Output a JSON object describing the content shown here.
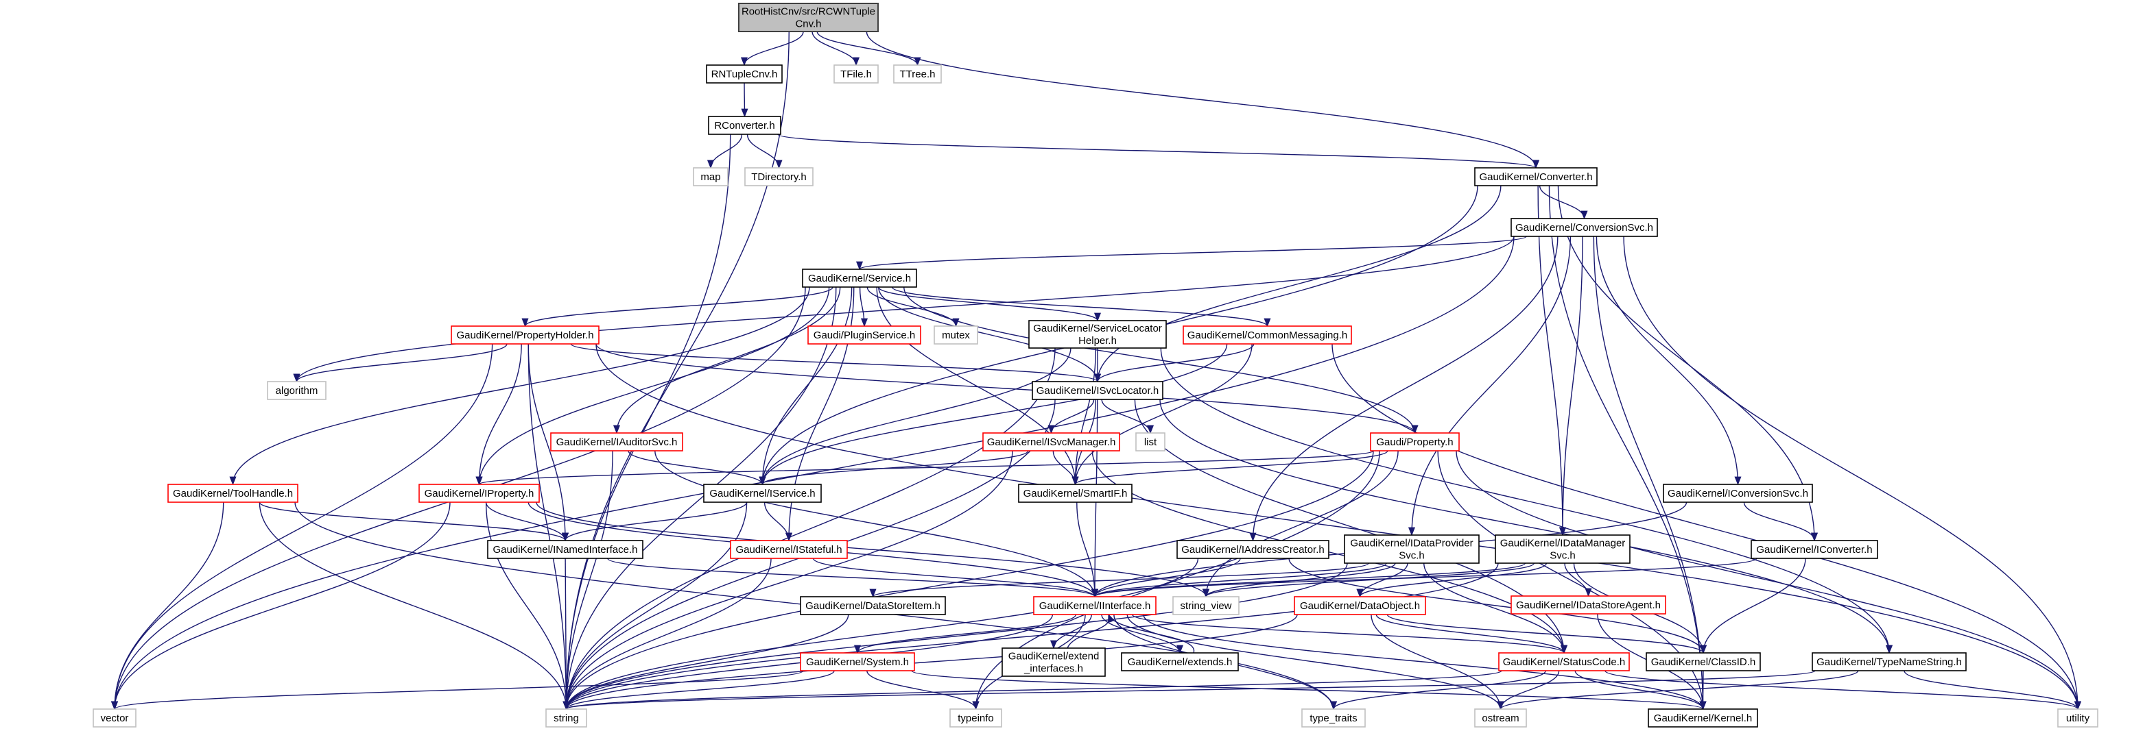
{
  "colors": {
    "edge": "#191970",
    "main_fill": "#bfbfbf",
    "main_border": "#404040",
    "normal_border": "#000000",
    "truncated_border": "#ff0000",
    "external_border": "#bfbfbf"
  },
  "nodes": [
    {
      "id": "rcwn",
      "lines": [
        "RootHistCnv/src/RCWNTuple",
        "Cnv.h"
      ],
      "kind": "main"
    },
    {
      "id": "rntuple",
      "lines": [
        "RNTupleCnv.h"
      ],
      "kind": "normal"
    },
    {
      "id": "tfile",
      "lines": [
        "TFile.h"
      ],
      "kind": "external"
    },
    {
      "id": "ttree",
      "lines": [
        "TTree.h"
      ],
      "kind": "external"
    },
    {
      "id": "rconv",
      "lines": [
        "RConverter.h"
      ],
      "kind": "normal"
    },
    {
      "id": "map",
      "lines": [
        "map"
      ],
      "kind": "external"
    },
    {
      "id": "tdir",
      "lines": [
        "TDirectory.h"
      ],
      "kind": "external"
    },
    {
      "id": "converter",
      "lines": [
        "GaudiKernel/Converter.h"
      ],
      "kind": "normal"
    },
    {
      "id": "convsvc",
      "lines": [
        "GaudiKernel/ConversionSvc.h"
      ],
      "kind": "normal"
    },
    {
      "id": "service",
      "lines": [
        "GaudiKernel/Service.h"
      ],
      "kind": "normal"
    },
    {
      "id": "propholder",
      "lines": [
        "GaudiKernel/PropertyHolder.h"
      ],
      "kind": "truncated"
    },
    {
      "id": "plugin",
      "lines": [
        "Gaudi/PluginService.h"
      ],
      "kind": "truncated"
    },
    {
      "id": "mutex",
      "lines": [
        "mutex"
      ],
      "kind": "external"
    },
    {
      "id": "slhelper",
      "lines": [
        "GaudiKernel/ServiceLocator",
        "Helper.h"
      ],
      "kind": "normal"
    },
    {
      "id": "commsg",
      "lines": [
        "GaudiKernel/CommonMessaging.h"
      ],
      "kind": "truncated"
    },
    {
      "id": "algorithm",
      "lines": [
        "algorithm"
      ],
      "kind": "external"
    },
    {
      "id": "isvcloc",
      "lines": [
        "GaudiKernel/ISvcLocator.h"
      ],
      "kind": "normal"
    },
    {
      "id": "iauditor",
      "lines": [
        "GaudiKernel/IAuditorSvc.h"
      ],
      "kind": "truncated"
    },
    {
      "id": "isvcmgr",
      "lines": [
        "GaudiKernel/ISvcManager.h"
      ],
      "kind": "truncated"
    },
    {
      "id": "list",
      "lines": [
        "list"
      ],
      "kind": "external"
    },
    {
      "id": "property",
      "lines": [
        "Gaudi/Property.h"
      ],
      "kind": "truncated"
    },
    {
      "id": "toolhandle",
      "lines": [
        "GaudiKernel/ToolHandle.h"
      ],
      "kind": "truncated"
    },
    {
      "id": "iproperty",
      "lines": [
        "GaudiKernel/IProperty.h"
      ],
      "kind": "truncated"
    },
    {
      "id": "iservice",
      "lines": [
        "GaudiKernel/IService.h"
      ],
      "kind": "normal"
    },
    {
      "id": "smartif",
      "lines": [
        "GaudiKernel/SmartIF.h"
      ],
      "kind": "normal"
    },
    {
      "id": "iconvsvc",
      "lines": [
        "GaudiKernel/IConversionSvc.h"
      ],
      "kind": "normal"
    },
    {
      "id": "inamed",
      "lines": [
        "GaudiKernel/INamedInterface.h"
      ],
      "kind": "normal"
    },
    {
      "id": "istateful",
      "lines": [
        "GaudiKernel/IStateful.h"
      ],
      "kind": "truncated"
    },
    {
      "id": "iaddr",
      "lines": [
        "GaudiKernel/IAddressCreator.h"
      ],
      "kind": "normal"
    },
    {
      "id": "idataprov",
      "lines": [
        "GaudiKernel/IDataProvider",
        "Svc.h"
      ],
      "kind": "normal"
    },
    {
      "id": "idatamgr",
      "lines": [
        "GaudiKernel/IDataManager",
        "Svc.h"
      ],
      "kind": "normal"
    },
    {
      "id": "iconverter",
      "lines": [
        "GaudiKernel/IConverter.h"
      ],
      "kind": "normal"
    },
    {
      "id": "dsitem",
      "lines": [
        "GaudiKernel/DataStoreItem.h"
      ],
      "kind": "normal"
    },
    {
      "id": "iinterface",
      "lines": [
        "GaudiKernel/IInterface.h"
      ],
      "kind": "truncated"
    },
    {
      "id": "string_view",
      "lines": [
        "string_view"
      ],
      "kind": "external"
    },
    {
      "id": "dataobject",
      "lines": [
        "GaudiKernel/DataObject.h"
      ],
      "kind": "truncated"
    },
    {
      "id": "idsagent",
      "lines": [
        "GaudiKernel/IDataStoreAgent.h"
      ],
      "kind": "truncated"
    },
    {
      "id": "extif",
      "lines": [
        "GaudiKernel/extend",
        "_interfaces.h"
      ],
      "kind": "normal"
    },
    {
      "id": "extends",
      "lines": [
        "GaudiKernel/extends.h"
      ],
      "kind": "normal"
    },
    {
      "id": "system",
      "lines": [
        "GaudiKernel/System.h"
      ],
      "kind": "truncated"
    },
    {
      "id": "statuscode",
      "lines": [
        "GaudiKernel/StatusCode.h"
      ],
      "kind": "truncated"
    },
    {
      "id": "classid",
      "lines": [
        "GaudiKernel/ClassID.h"
      ],
      "kind": "normal"
    },
    {
      "id": "typename",
      "lines": [
        "GaudiKernel/TypeNameString.h"
      ],
      "kind": "normal"
    },
    {
      "id": "vector",
      "lines": [
        "vector"
      ],
      "kind": "external"
    },
    {
      "id": "string",
      "lines": [
        "string"
      ],
      "kind": "external"
    },
    {
      "id": "typeinfo",
      "lines": [
        "typeinfo"
      ],
      "kind": "external"
    },
    {
      "id": "type_traits",
      "lines": [
        "type_traits"
      ],
      "kind": "external"
    },
    {
      "id": "ostream",
      "lines": [
        "ostream"
      ],
      "kind": "external"
    },
    {
      "id": "kernel",
      "lines": [
        "GaudiKernel/Kernel.h"
      ],
      "kind": "normal"
    },
    {
      "id": "utility",
      "lines": [
        "utility"
      ],
      "kind": "external"
    }
  ],
  "edges": [
    [
      "rcwn",
      "rntuple"
    ],
    [
      "rcwn",
      "tfile"
    ],
    [
      "rcwn",
      "ttree"
    ],
    [
      "rcwn",
      "converter"
    ],
    [
      "rcwn",
      "string"
    ],
    [
      "rntuple",
      "rconv"
    ],
    [
      "rconv",
      "map"
    ],
    [
      "rconv",
      "tdir"
    ],
    [
      "rconv",
      "converter"
    ],
    [
      "rconv",
      "string"
    ],
    [
      "converter",
      "convsvc"
    ],
    [
      "converter",
      "iservice"
    ],
    [
      "converter",
      "isvcloc"
    ],
    [
      "converter",
      "iconverter"
    ],
    [
      "converter",
      "idatamgr"
    ],
    [
      "converter",
      "kernel"
    ],
    [
      "convsvc",
      "service"
    ],
    [
      "convsvc",
      "iconvsvc"
    ],
    [
      "convsvc",
      "idataprov"
    ],
    [
      "convsvc",
      "idatamgr"
    ],
    [
      "convsvc",
      "iaddr"
    ],
    [
      "convsvc",
      "vector"
    ],
    [
      "convsvc",
      "kernel"
    ],
    [
      "convsvc",
      "utility"
    ],
    [
      "convsvc",
      "algorithm"
    ],
    [
      "service",
      "propholder"
    ],
    [
      "service",
      "plugin"
    ],
    [
      "service",
      "mutex"
    ],
    [
      "service",
      "slhelper"
    ],
    [
      "service",
      "commsg"
    ],
    [
      "service",
      "isvcloc"
    ],
    [
      "service",
      "property"
    ],
    [
      "service",
      "iproperty"
    ],
    [
      "service",
      "iservice"
    ],
    [
      "service",
      "iauditor"
    ],
    [
      "service",
      "istateful"
    ],
    [
      "service",
      "smartif"
    ],
    [
      "service",
      "toolhandle"
    ],
    [
      "service",
      "string"
    ],
    [
      "service",
      "vector"
    ],
    [
      "propholder",
      "algorithm"
    ],
    [
      "propholder",
      "iproperty"
    ],
    [
      "propholder",
      "inamed"
    ],
    [
      "propholder",
      "isvcloc"
    ],
    [
      "propholder",
      "property"
    ],
    [
      "propholder",
      "vector"
    ],
    [
      "propholder",
      "string"
    ],
    [
      "propholder",
      "utility"
    ],
    [
      "slhelper",
      "isvcloc"
    ],
    [
      "slhelper",
      "smartif"
    ],
    [
      "slhelper",
      "iservice"
    ],
    [
      "slhelper",
      "string"
    ],
    [
      "slhelper",
      "typename"
    ],
    [
      "commsg",
      "isvcloc"
    ],
    [
      "commsg",
      "smartif"
    ],
    [
      "commsg",
      "iservice"
    ],
    [
      "commsg",
      "utility"
    ],
    [
      "isvcloc",
      "isvcmgr"
    ],
    [
      "isvcloc",
      "list"
    ],
    [
      "isvcloc",
      "smartif"
    ],
    [
      "isvcloc",
      "iinterface"
    ],
    [
      "isvcloc",
      "string"
    ],
    [
      "isvcloc",
      "statuscode"
    ],
    [
      "isvcloc",
      "typename"
    ],
    [
      "iauditor",
      "iservice"
    ],
    [
      "iauditor",
      "iinterface"
    ],
    [
      "iauditor",
      "string"
    ],
    [
      "isvcmgr",
      "iservice"
    ],
    [
      "isvcmgr",
      "smartif"
    ],
    [
      "isvcmgr",
      "string"
    ],
    [
      "isvcmgr",
      "statuscode"
    ],
    [
      "property",
      "iproperty"
    ],
    [
      "property",
      "smartif"
    ],
    [
      "property",
      "string"
    ],
    [
      "property",
      "string_view"
    ],
    [
      "property",
      "utility"
    ],
    [
      "property",
      "typeinfo"
    ],
    [
      "property",
      "kernel"
    ],
    [
      "toolhandle",
      "inamed"
    ],
    [
      "toolhandle",
      "vector"
    ],
    [
      "toolhandle",
      "string"
    ],
    [
      "toolhandle",
      "type_traits"
    ],
    [
      "iproperty",
      "inamed"
    ],
    [
      "iproperty",
      "iinterface"
    ],
    [
      "iproperty",
      "string"
    ],
    [
      "iproperty",
      "vector"
    ],
    [
      "iproperty",
      "string_view"
    ],
    [
      "iservice",
      "inamed"
    ],
    [
      "iservice",
      "istateful"
    ],
    [
      "iservice",
      "string"
    ],
    [
      "smartif",
      "iinterface"
    ],
    [
      "iconvsvc",
      "iconverter"
    ],
    [
      "iconvsvc",
      "iinterface"
    ],
    [
      "inamed",
      "iinterface"
    ],
    [
      "inamed",
      "string"
    ],
    [
      "istateful",
      "iinterface"
    ],
    [
      "istateful",
      "string"
    ],
    [
      "iaddr",
      "iinterface"
    ],
    [
      "iaddr",
      "string"
    ],
    [
      "iaddr",
      "classid"
    ],
    [
      "idataprov",
      "iinterface"
    ],
    [
      "idataprov",
      "dataobject"
    ],
    [
      "idataprov",
      "string"
    ],
    [
      "idataprov",
      "string_view"
    ],
    [
      "idataprov",
      "dsitem"
    ],
    [
      "idataprov",
      "statuscode"
    ],
    [
      "idatamgr",
      "iinterface"
    ],
    [
      "idatamgr",
      "dataobject"
    ],
    [
      "idatamgr",
      "idsagent"
    ],
    [
      "idatamgr",
      "string"
    ],
    [
      "idatamgr",
      "classid"
    ],
    [
      "idatamgr",
      "string_view"
    ],
    [
      "iconverter",
      "iinterface"
    ],
    [
      "iconverter",
      "classid"
    ],
    [
      "dataobject",
      "classid"
    ],
    [
      "dataobject",
      "statuscode"
    ],
    [
      "dataobject",
      "string"
    ],
    [
      "dataobject",
      "ostream"
    ],
    [
      "idsagent",
      "kernel"
    ],
    [
      "dsitem",
      "string"
    ],
    [
      "iinterface",
      "system"
    ],
    [
      "iinterface",
      "extif"
    ],
    [
      "iinterface",
      "extends"
    ],
    [
      "iinterface",
      "statuscode"
    ],
    [
      "iinterface",
      "kernel"
    ],
    [
      "iinterface",
      "typeinfo"
    ],
    [
      "iinterface",
      "type_traits"
    ],
    [
      "iinterface",
      "ostream"
    ],
    [
      "iinterface",
      "string"
    ],
    [
      "extif",
      "iinterface"
    ],
    [
      "extends",
      "iinterface"
    ],
    [
      "system",
      "string"
    ],
    [
      "system",
      "vector"
    ],
    [
      "system",
      "typeinfo"
    ],
    [
      "system",
      "kernel"
    ],
    [
      "statuscode",
      "ostream"
    ],
    [
      "statuscode",
      "kernel"
    ],
    [
      "statuscode",
      "type_traits"
    ],
    [
      "statuscode",
      "utility"
    ],
    [
      "statuscode",
      "string"
    ],
    [
      "classid",
      "kernel"
    ],
    [
      "typename",
      "string"
    ],
    [
      "typename",
      "ostream"
    ],
    [
      "typename",
      "utility"
    ]
  ]
}
